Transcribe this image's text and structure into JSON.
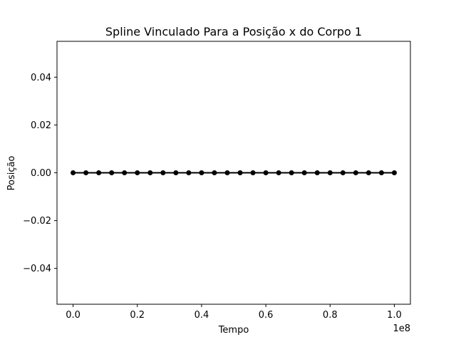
{
  "chart_data": {
    "type": "line",
    "title": "Spline Vinculado Para a Posição x do Corpo 1",
    "xlabel": "Tempo",
    "ylabel": "Posição",
    "x_offset_label": "1e8",
    "x_scale": 100000000,
    "xlim": [
      -0.05,
      1.05
    ],
    "ylim": [
      -0.055,
      0.055
    ],
    "xticks": [
      0.0,
      0.2,
      0.4,
      0.6,
      0.8,
      1.0
    ],
    "xtick_labels": [
      "0.0",
      "0.2",
      "0.4",
      "0.6",
      "0.8",
      "1.0"
    ],
    "yticks": [
      -0.04,
      -0.02,
      0.0,
      0.02,
      0.04
    ],
    "ytick_labels": [
      "−0.04",
      "−0.02",
      "0.00",
      "0.02",
      "0.04"
    ],
    "grid": false,
    "series": [
      {
        "color": "#000000",
        "marker": "circle",
        "x": [
          0,
          4000000,
          8000000,
          12000000,
          16000000,
          20000000,
          24000000,
          28000000,
          32000000,
          36000000,
          40000000,
          44000000,
          48000000,
          52000000,
          56000000,
          60000000,
          64000000,
          68000000,
          72000000,
          76000000,
          80000000,
          84000000,
          88000000,
          92000000,
          96000000,
          100000000
        ],
        "y": [
          0,
          0,
          0,
          0,
          0,
          0,
          0,
          0,
          0,
          0,
          0,
          0,
          0,
          0,
          0,
          0,
          0,
          0,
          0,
          0,
          0,
          0,
          0,
          0,
          0,
          0
        ]
      }
    ]
  }
}
